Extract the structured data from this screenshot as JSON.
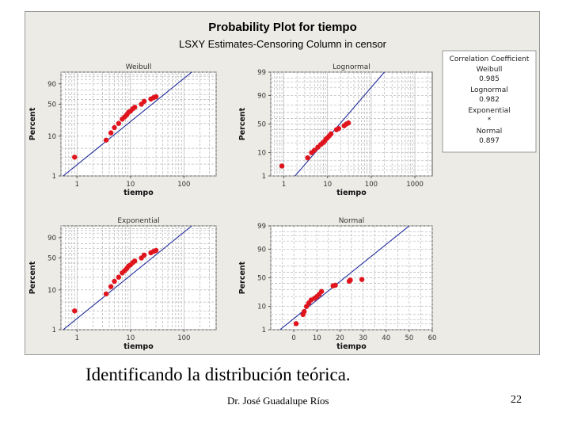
{
  "colors": {
    "panel_bg": "#ecebe6",
    "plot_bg": "#ffffff",
    "grid": "#b4b4b4",
    "fit_line": "#1f2a99",
    "points": "#e0141c"
  },
  "chart_data": {
    "type": "scatter",
    "title": "Probability Plot for tiempo",
    "subtitle": "LSXY Estimates-Censoring Column in censor",
    "legend": {
      "title": "Correlation Coefficient",
      "entries": [
        {
          "name": "Weibull",
          "value": "0.985"
        },
        {
          "name": "Lognormal",
          "value": "0.982"
        },
        {
          "name": "Exponential",
          "value": "*"
        },
        {
          "name": "Normal",
          "value": "0.897"
        }
      ]
    },
    "panels": [
      {
        "name": "Weibull",
        "xlabel": "tiempo",
        "ylabel": "Percent",
        "xscale": "log",
        "xlim": [
          0.5,
          400
        ],
        "ylim": [
          1,
          99
        ],
        "xticks": [
          1,
          10,
          100
        ],
        "xticklabels": [
          "1",
          "10",
          "100"
        ],
        "yticks": [
          1,
          10,
          50,
          90
        ],
        "yticklabels": [
          "1",
          "10",
          "50",
          "90"
        ],
        "line": {
          "x": [
            0.55,
            140
          ],
          "y": [
            1,
            99
          ]
        },
        "points": {
          "x": [
            0.9,
            3.5,
            4.3,
            5.0,
            6.0,
            7.0,
            7.8,
            8.5,
            9.2,
            10.0,
            11.0,
            12.0,
            16.0,
            18.0,
            24.0,
            27.0,
            30.0
          ],
          "y": [
            3.0,
            8.0,
            12.0,
            16.0,
            20.0,
            25.0,
            28.0,
            31.0,
            35.0,
            37.0,
            41.0,
            44.0,
            50.0,
            56.0,
            61.0,
            64.0,
            66.0
          ]
        }
      },
      {
        "name": "Lognormal",
        "xlabel": "tiempo",
        "ylabel": "Percent",
        "xscale": "log",
        "xlim": [
          0.5,
          2500
        ],
        "ylim": [
          1,
          99
        ],
        "xticks": [
          1,
          10,
          100,
          1000
        ],
        "xticklabels": [
          "1",
          "10",
          "100",
          "1000"
        ],
        "yticks": [
          1,
          10,
          50,
          90,
          99
        ],
        "yticklabels": [
          "1",
          "10",
          "50",
          "90",
          "99"
        ],
        "line": {
          "x": [
            1.8,
            200
          ],
          "y": [
            1,
            99
          ]
        },
        "points": {
          "x": [
            0.9,
            3.5,
            4.3,
            5.0,
            6.0,
            7.0,
            7.8,
            8.5,
            9.2,
            10.0,
            11.0,
            12.0,
            16.0,
            18.0,
            24.0,
            27.0,
            30.0
          ],
          "y": [
            3.0,
            6.5,
            10.0,
            12.0,
            15.0,
            18.0,
            20.0,
            22.0,
            25.0,
            27.0,
            30.0,
            33.0,
            40.0,
            42.0,
            47.0,
            50.0,
            52.0
          ]
        }
      },
      {
        "name": "Exponential",
        "xlabel": "tiempo",
        "ylabel": "Percent",
        "xscale": "log",
        "xlim": [
          0.5,
          400
        ],
        "ylim": [
          1,
          99
        ],
        "xticks": [
          1,
          10,
          100
        ],
        "xticklabels": [
          "1",
          "10",
          "100"
        ],
        "yticks": [
          1,
          10,
          50,
          90
        ],
        "yticklabels": [
          "1",
          "10",
          "50",
          "90"
        ],
        "line": {
          "x": [
            0.55,
            140
          ],
          "y": [
            1,
            99
          ]
        },
        "points": {
          "x": [
            0.9,
            3.5,
            4.3,
            5.0,
            6.0,
            7.0,
            7.8,
            8.5,
            9.2,
            10.0,
            11.0,
            12.0,
            16.0,
            18.0,
            24.0,
            27.0,
            30.0
          ],
          "y": [
            3.0,
            8.0,
            12.0,
            16.0,
            20.0,
            25.0,
            28.0,
            31.0,
            35.0,
            37.0,
            41.0,
            44.0,
            50.0,
            56.0,
            61.0,
            64.0,
            66.0
          ]
        }
      },
      {
        "name": "Normal",
        "xlabel": "tiempo",
        "ylabel": "Percent",
        "xscale": "linear",
        "xlim": [
          -10,
          60
        ],
        "ylim": [
          1,
          99
        ],
        "xticks": [
          0,
          10,
          20,
          30,
          40,
          50,
          60
        ],
        "xticklabels": [
          "0",
          "10",
          "20",
          "30",
          "40",
          "50",
          "60"
        ],
        "yticks": [
          1,
          10,
          50,
          90,
          99
        ],
        "yticklabels": [
          "1",
          "10",
          "50",
          "90",
          "99"
        ],
        "line": {
          "x": [
            -6,
            50
          ],
          "y": [
            1,
            99
          ]
        },
        "points": {
          "x": [
            1.0,
            4.0,
            4.5,
            5.5,
            6.5,
            7.5,
            9.0,
            10.0,
            11.0,
            12.0,
            17.0,
            18.0,
            24.0,
            24.5,
            29.5
          ],
          "y": [
            2.0,
            5.0,
            6.5,
            10.0,
            13.0,
            16.0,
            18.0,
            20.0,
            23.0,
            27.0,
            36.0,
            37.0,
            44.0,
            46.0,
            47.0
          ]
        }
      }
    ]
  },
  "footer": {
    "caption": "Identificando la distribución teórica.",
    "author": "Dr. José Guadalupe Ríos",
    "page_number": "22"
  }
}
